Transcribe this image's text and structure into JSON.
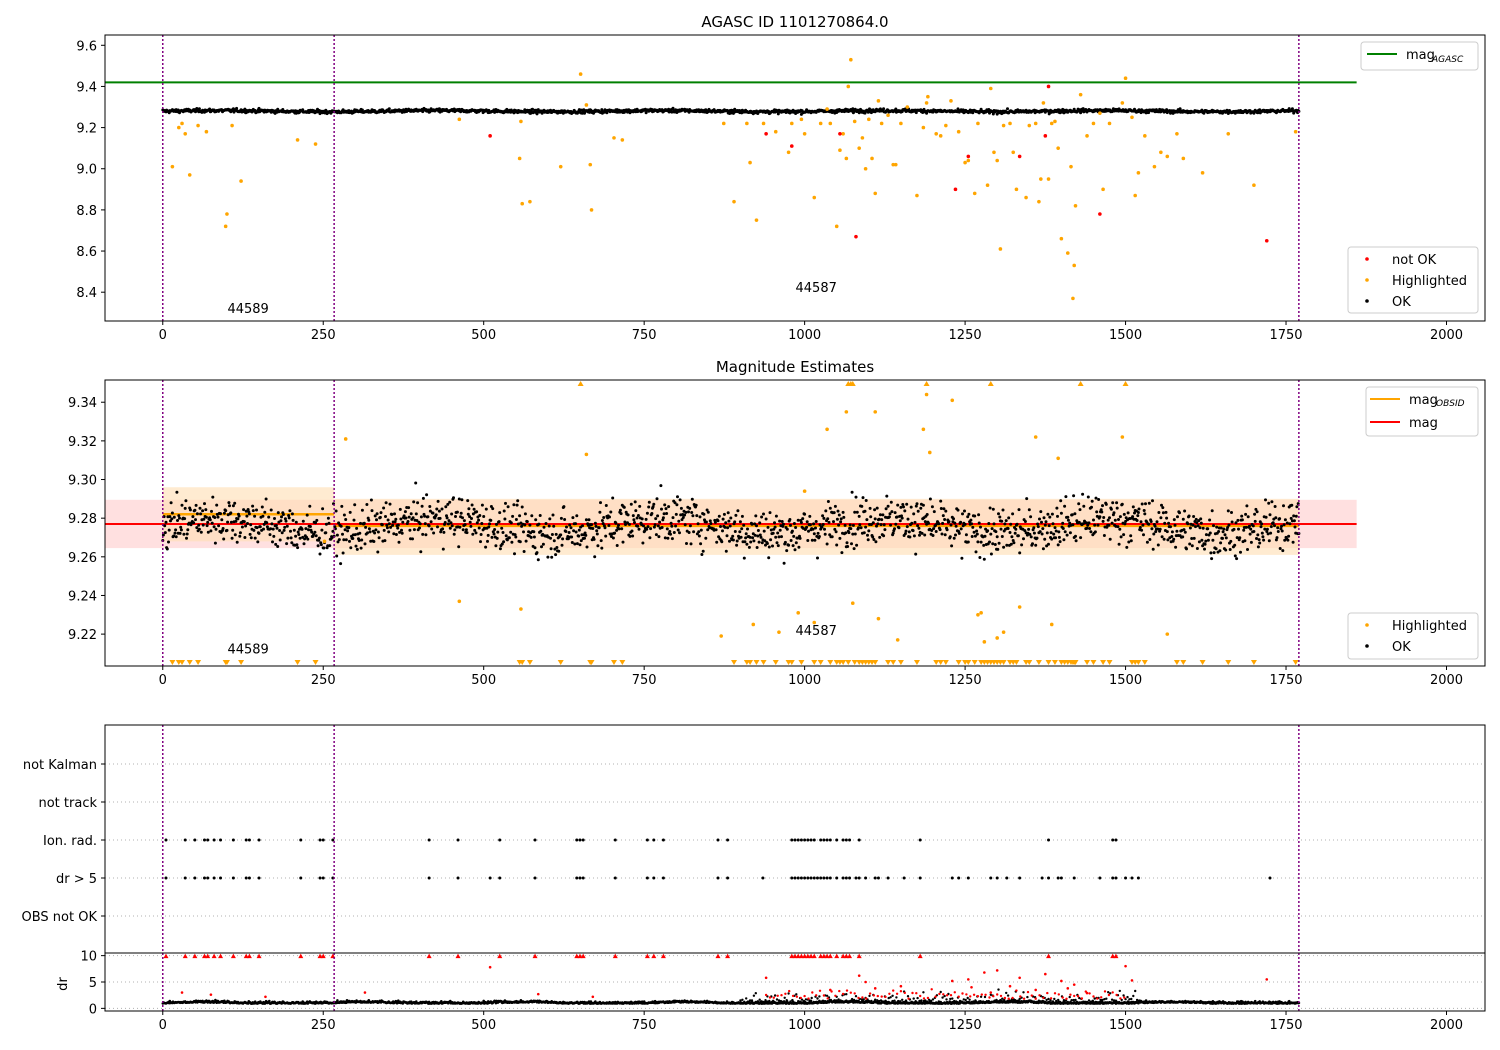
{
  "chart_data": [
    {
      "type": "scatter",
      "title": "AGASC ID 1101270864.0",
      "xlim": [
        -90,
        2060
      ],
      "ylim": [
        8.26,
        9.65
      ],
      "xticks": [
        0,
        250,
        500,
        750,
        1000,
        1250,
        1500,
        1750,
        2000
      ],
      "yticks": [
        8.4,
        8.6,
        8.8,
        9.0,
        9.2,
        9.4,
        9.6
      ],
      "ytick_labels": [
        "8.4",
        "8.6",
        "8.8",
        "9.0",
        "9.2",
        "9.4",
        "9.6"
      ],
      "obsid_boundaries": [
        0,
        267,
        1770
      ],
      "obsid_labels": [
        {
          "text": "44589",
          "x": 133,
          "y": 8.3
        },
        {
          "text": "44587",
          "x": 1018,
          "y": 8.4
        }
      ],
      "reference_lines": [
        {
          "name": "mag_AGASC",
          "y": 9.42,
          "x_range": [
            -90,
            1860
          ],
          "color": "#008000"
        }
      ],
      "ok_band": {
        "mean": 9.28,
        "noise": 0.008,
        "x_range": [
          0,
          1770
        ],
        "color": "#000000"
      },
      "legend_upper": [
        {
          "label": "mag",
          "sub": "AGASC",
          "color": "#008000"
        }
      ],
      "legend_lower": [
        {
          "label": "not OK",
          "color": "#ff0000"
        },
        {
          "label": "Highlighted",
          "color": "#ffa500"
        },
        {
          "label": "OK",
          "color": "#000000"
        }
      ],
      "highlighted_points": [
        [
          15,
          9.01
        ],
        [
          25,
          9.2
        ],
        [
          30,
          9.22
        ],
        [
          35,
          9.17
        ],
        [
          42,
          8.97
        ],
        [
          55,
          9.21
        ],
        [
          68,
          9.18
        ],
        [
          98,
          8.72
        ],
        [
          100,
          8.78
        ],
        [
          108,
          9.21
        ],
        [
          122,
          8.94
        ],
        [
          210,
          9.14
        ],
        [
          238,
          9.12
        ],
        [
          462,
          9.24
        ],
        [
          556,
          9.05
        ],
        [
          558,
          9.23
        ],
        [
          560,
          8.83
        ],
        [
          572,
          8.84
        ],
        [
          620,
          9.01
        ],
        [
          651,
          9.46
        ],
        [
          660,
          9.31
        ],
        [
          666,
          9.02
        ],
        [
          668,
          8.8
        ],
        [
          703,
          9.15
        ],
        [
          716,
          9.14
        ],
        [
          874,
          9.22
        ],
        [
          890,
          8.84
        ],
        [
          910,
          9.22
        ],
        [
          915,
          9.03
        ],
        [
          925,
          8.75
        ],
        [
          936,
          9.22
        ],
        [
          955,
          9.18
        ],
        [
          975,
          9.08
        ],
        [
          980,
          9.22
        ],
        [
          995,
          9.24
        ],
        [
          1000,
          9.17
        ],
        [
          1015,
          8.86
        ],
        [
          1025,
          9.22
        ],
        [
          1035,
          9.29
        ],
        [
          1040,
          9.22
        ],
        [
          1050,
          8.72
        ],
        [
          1055,
          9.09
        ],
        [
          1060,
          9.17
        ],
        [
          1065,
          9.05
        ],
        [
          1068,
          9.4
        ],
        [
          1072,
          9.53
        ],
        [
          1078,
          9.23
        ],
        [
          1085,
          9.1
        ],
        [
          1090,
          9.15
        ],
        [
          1095,
          9.0
        ],
        [
          1100,
          9.24
        ],
        [
          1105,
          9.05
        ],
        [
          1110,
          8.88
        ],
        [
          1115,
          9.33
        ],
        [
          1120,
          9.22
        ],
        [
          1130,
          9.26
        ],
        [
          1138,
          9.02
        ],
        [
          1142,
          9.02
        ],
        [
          1150,
          9.22
        ],
        [
          1160,
          9.3
        ],
        [
          1175,
          8.87
        ],
        [
          1185,
          9.2
        ],
        [
          1190,
          9.32
        ],
        [
          1192,
          9.35
        ],
        [
          1205,
          9.17
        ],
        [
          1212,
          9.16
        ],
        [
          1220,
          9.21
        ],
        [
          1228,
          9.33
        ],
        [
          1240,
          9.18
        ],
        [
          1250,
          9.03
        ],
        [
          1255,
          9.04
        ],
        [
          1265,
          8.88
        ],
        [
          1270,
          9.22
        ],
        [
          1285,
          8.92
        ],
        [
          1290,
          9.39
        ],
        [
          1295,
          9.08
        ],
        [
          1300,
          9.04
        ],
        [
          1305,
          8.61
        ],
        [
          1310,
          9.21
        ],
        [
          1320,
          9.22
        ],
        [
          1325,
          9.08
        ],
        [
          1330,
          8.9
        ],
        [
          1345,
          8.86
        ],
        [
          1350,
          9.21
        ],
        [
          1360,
          9.22
        ],
        [
          1365,
          8.84
        ],
        [
          1368,
          8.95
        ],
        [
          1372,
          9.32
        ],
        [
          1380,
          8.95
        ],
        [
          1385,
          9.22
        ],
        [
          1390,
          9.23
        ],
        [
          1395,
          9.1
        ],
        [
          1400,
          8.66
        ],
        [
          1410,
          8.59
        ],
        [
          1415,
          9.01
        ],
        [
          1418,
          8.37
        ],
        [
          1420,
          8.53
        ],
        [
          1422,
          8.82
        ],
        [
          1430,
          9.36
        ],
        [
          1440,
          9.16
        ],
        [
          1450,
          9.22
        ],
        [
          1460,
          9.27
        ],
        [
          1465,
          8.9
        ],
        [
          1475,
          9.22
        ],
        [
          1495,
          9.32
        ],
        [
          1500,
          9.44
        ],
        [
          1510,
          9.25
        ],
        [
          1515,
          8.87
        ],
        [
          1520,
          8.98
        ],
        [
          1530,
          9.16
        ],
        [
          1545,
          9.01
        ],
        [
          1555,
          9.08
        ],
        [
          1565,
          9.06
        ],
        [
          1580,
          9.17
        ],
        [
          1590,
          9.05
        ],
        [
          1620,
          8.98
        ],
        [
          1660,
          9.17
        ],
        [
          1700,
          8.92
        ],
        [
          1765,
          9.18
        ]
      ],
      "not_ok_points": [
        [
          510,
          9.16
        ],
        [
          940,
          9.17
        ],
        [
          980,
          9.11
        ],
        [
          1055,
          9.17
        ],
        [
          1080,
          8.67
        ],
        [
          1235,
          8.9
        ],
        [
          1255,
          9.06
        ],
        [
          1335,
          9.06
        ],
        [
          1375,
          9.16
        ],
        [
          1380,
          9.4
        ],
        [
          1460,
          8.78
        ],
        [
          1720,
          8.65
        ]
      ]
    },
    {
      "type": "scatter",
      "title": "Magnitude Estimates",
      "xlim": [
        -90,
        2060
      ],
      "ylim": [
        9.2035,
        9.3515
      ],
      "xticks": [
        0,
        250,
        500,
        750,
        1000,
        1250,
        1500,
        1750,
        2000
      ],
      "yticks": [
        9.22,
        9.24,
        9.26,
        9.28,
        9.3,
        9.32,
        9.34
      ],
      "ytick_labels": [
        "9.22",
        "9.24",
        "9.26",
        "9.28",
        "9.30",
        "9.32",
        "9.34"
      ],
      "obsid_boundaries": [
        0,
        267,
        1770
      ],
      "obsid_labels": [
        {
          "text": "44589",
          "x": 133,
          "y": 9.21
        },
        {
          "text": "44587",
          "x": 1018,
          "y": 9.2195
        }
      ],
      "global_mag": {
        "name": "mag",
        "value": 9.277,
        "band": [
          9.2645,
          9.2895
        ],
        "x_range": [
          -90,
          1860
        ],
        "color": "#ff0000",
        "band_color": "#ffcccc"
      },
      "obsid_mags": [
        {
          "name": "mag_OBSID",
          "value": 9.282,
          "band": [
            9.268,
            9.296
          ],
          "x_range": [
            0,
            267
          ],
          "color": "#ffa500",
          "band_color": "#ffddb3"
        },
        {
          "name": "mag_OBSID",
          "value": 9.276,
          "band": [
            9.261,
            9.29
          ],
          "x_range": [
            267,
            1770
          ],
          "color": "#ffa500",
          "band_color": "#ffddb3"
        }
      ],
      "ok_band": {
        "mean": 9.276,
        "noise": 0.011,
        "x_range": [
          0,
          1770
        ],
        "color": "#000000"
      },
      "legend_upper": [
        {
          "label": "mag",
          "sub": "OBSID",
          "color": "#ffa500"
        },
        {
          "label": "mag",
          "sub": "",
          "color": "#ff0000"
        }
      ],
      "legend_lower": [
        {
          "label": "Highlighted",
          "color": "#ffa500"
        },
        {
          "label": "OK",
          "color": "#000000"
        }
      ],
      "highlighted_points": [
        [
          252,
          9.268
        ],
        [
          285,
          9.321
        ],
        [
          462,
          9.237
        ],
        [
          558,
          9.233
        ],
        [
          660,
          9.313
        ],
        [
          870,
          9.219
        ],
        [
          920,
          9.225
        ],
        [
          960,
          9.221
        ],
        [
          990,
          9.231
        ],
        [
          1000,
          9.294
        ],
        [
          1015,
          9.226
        ],
        [
          1035,
          9.326
        ],
        [
          1065,
          9.335
        ],
        [
          1075,
          9.236
        ],
        [
          1110,
          9.335
        ],
        [
          1115,
          9.228
        ],
        [
          1145,
          9.217
        ],
        [
          1185,
          9.326
        ],
        [
          1190,
          9.344
        ],
        [
          1195,
          9.314
        ],
        [
          1230,
          9.341
        ],
        [
          1270,
          9.23
        ],
        [
          1275,
          9.231
        ],
        [
          1280,
          9.216
        ],
        [
          1300,
          9.218
        ],
        [
          1310,
          9.221
        ],
        [
          1335,
          9.234
        ],
        [
          1360,
          9.322
        ],
        [
          1385,
          9.225
        ],
        [
          1395,
          9.311
        ],
        [
          1495,
          9.322
        ],
        [
          1565,
          9.22
        ]
      ],
      "overflow_high_x": [
        651,
        1068,
        1072,
        1075,
        1190,
        1290,
        1430,
        1500
      ],
      "overflow_low_x": [
        15,
        25,
        30,
        42,
        55,
        98,
        100,
        122,
        210,
        238,
        556,
        560,
        572,
        620,
        666,
        668,
        703,
        716,
        890,
        910,
        915,
        925,
        936,
        955,
        975,
        980,
        995,
        1015,
        1025,
        1040,
        1050,
        1055,
        1060,
        1068,
        1078,
        1085,
        1090,
        1095,
        1100,
        1105,
        1110,
        1130,
        1138,
        1150,
        1175,
        1205,
        1212,
        1220,
        1240,
        1250,
        1255,
        1265,
        1275,
        1280,
        1285,
        1290,
        1295,
        1300,
        1305,
        1310,
        1320,
        1325,
        1330,
        1345,
        1350,
        1365,
        1380,
        1390,
        1400,
        1405,
        1410,
        1415,
        1418,
        1420,
        1422,
        1440,
        1450,
        1465,
        1475,
        1510,
        1515,
        1520,
        1530,
        1580,
        1590,
        1620,
        1660,
        1700,
        1765
      ]
    },
    {
      "type": "scatter",
      "title": "",
      "xlim": [
        -90,
        2060
      ],
      "categories": [
        "not Kalman",
        "not track",
        "Ion. rad.",
        "dr > 5",
        "OBS not OK"
      ],
      "obsid_boundaries": [
        0,
        267,
        1770
      ],
      "ion_rad_x": [
        5,
        35,
        50,
        65,
        70,
        80,
        90,
        110,
        130,
        135,
        150,
        215,
        245,
        250,
        265,
        415,
        460,
        525,
        580,
        645,
        650,
        655,
        705,
        755,
        765,
        780,
        865,
        880,
        980,
        985,
        990,
        995,
        1000,
        1005,
        1010,
        1015,
        1025,
        1030,
        1035,
        1040,
        1050,
        1060,
        1065,
        1070,
        1085,
        1180,
        1380,
        1480,
        1485
      ],
      "dr5_x": [
        5,
        35,
        50,
        65,
        70,
        80,
        90,
        110,
        130,
        135,
        150,
        215,
        245,
        250,
        265,
        415,
        460,
        510,
        525,
        580,
        645,
        650,
        655,
        705,
        755,
        765,
        780,
        865,
        880,
        935,
        980,
        985,
        990,
        995,
        1000,
        1005,
        1010,
        1015,
        1020,
        1025,
        1030,
        1035,
        1040,
        1050,
        1060,
        1065,
        1070,
        1080,
        1085,
        1095,
        1110,
        1115,
        1130,
        1155,
        1180,
        1230,
        1240,
        1255,
        1290,
        1300,
        1315,
        1335,
        1370,
        1380,
        1395,
        1400,
        1420,
        1460,
        1480,
        1485,
        1500,
        1510,
        1520,
        1725
      ]
    },
    {
      "type": "scatter",
      "title": "",
      "ylabel": "dr",
      "xlim": [
        -90,
        2060
      ],
      "ylim": [
        -0.5,
        10.5
      ],
      "yticks": [
        0,
        5,
        10
      ],
      "ytick_labels": [
        "0",
        "5",
        "10"
      ],
      "xticks": [
        0,
        250,
        500,
        750,
        1000,
        1250,
        1500,
        1750,
        2000
      ],
      "obsid_boundaries": [
        0,
        267,
        1770
      ],
      "capped_red_x": [
        5,
        35,
        50,
        65,
        70,
        80,
        90,
        110,
        130,
        135,
        150,
        215,
        245,
        250,
        265,
        415,
        460,
        525,
        580,
        645,
        650,
        655,
        705,
        755,
        765,
        780,
        865,
        880,
        980,
        985,
        990,
        995,
        1000,
        1005,
        1010,
        1015,
        1025,
        1030,
        1035,
        1040,
        1050,
        1060,
        1065,
        1070,
        1085,
        1180,
        1380,
        1480,
        1485
      ],
      "red_points": [
        [
          30,
          3.0
        ],
        [
          75,
          2.6
        ],
        [
          160,
          2.2
        ],
        [
          315,
          3.0
        ],
        [
          510,
          7.8
        ],
        [
          585,
          2.7
        ],
        [
          670,
          2.2
        ],
        [
          940,
          5.8
        ],
        [
          1040,
          3.5
        ],
        [
          1085,
          6.2
        ],
        [
          1095,
          5.0
        ],
        [
          1110,
          3.8
        ],
        [
          1150,
          4.2
        ],
        [
          1230,
          5.2
        ],
        [
          1255,
          5.5
        ],
        [
          1260,
          4.0
        ],
        [
          1280,
          6.8
        ],
        [
          1290,
          3.0
        ],
        [
          1300,
          7.2
        ],
        [
          1320,
          4.2
        ],
        [
          1335,
          5.8
        ],
        [
          1360,
          3.5
        ],
        [
          1375,
          6.5
        ],
        [
          1400,
          5.2
        ],
        [
          1410,
          3.8
        ],
        [
          1420,
          4.5
        ],
        [
          1440,
          2.9
        ],
        [
          1500,
          8.0
        ],
        [
          1510,
          5.3
        ],
        [
          1720,
          5.5
        ]
      ]
    }
  ],
  "colors": {
    "ok": "#000000",
    "highlighted": "#ffa500",
    "not_ok": "#ff0000",
    "boundary": "#800080",
    "grid": "#b0b0b0"
  }
}
